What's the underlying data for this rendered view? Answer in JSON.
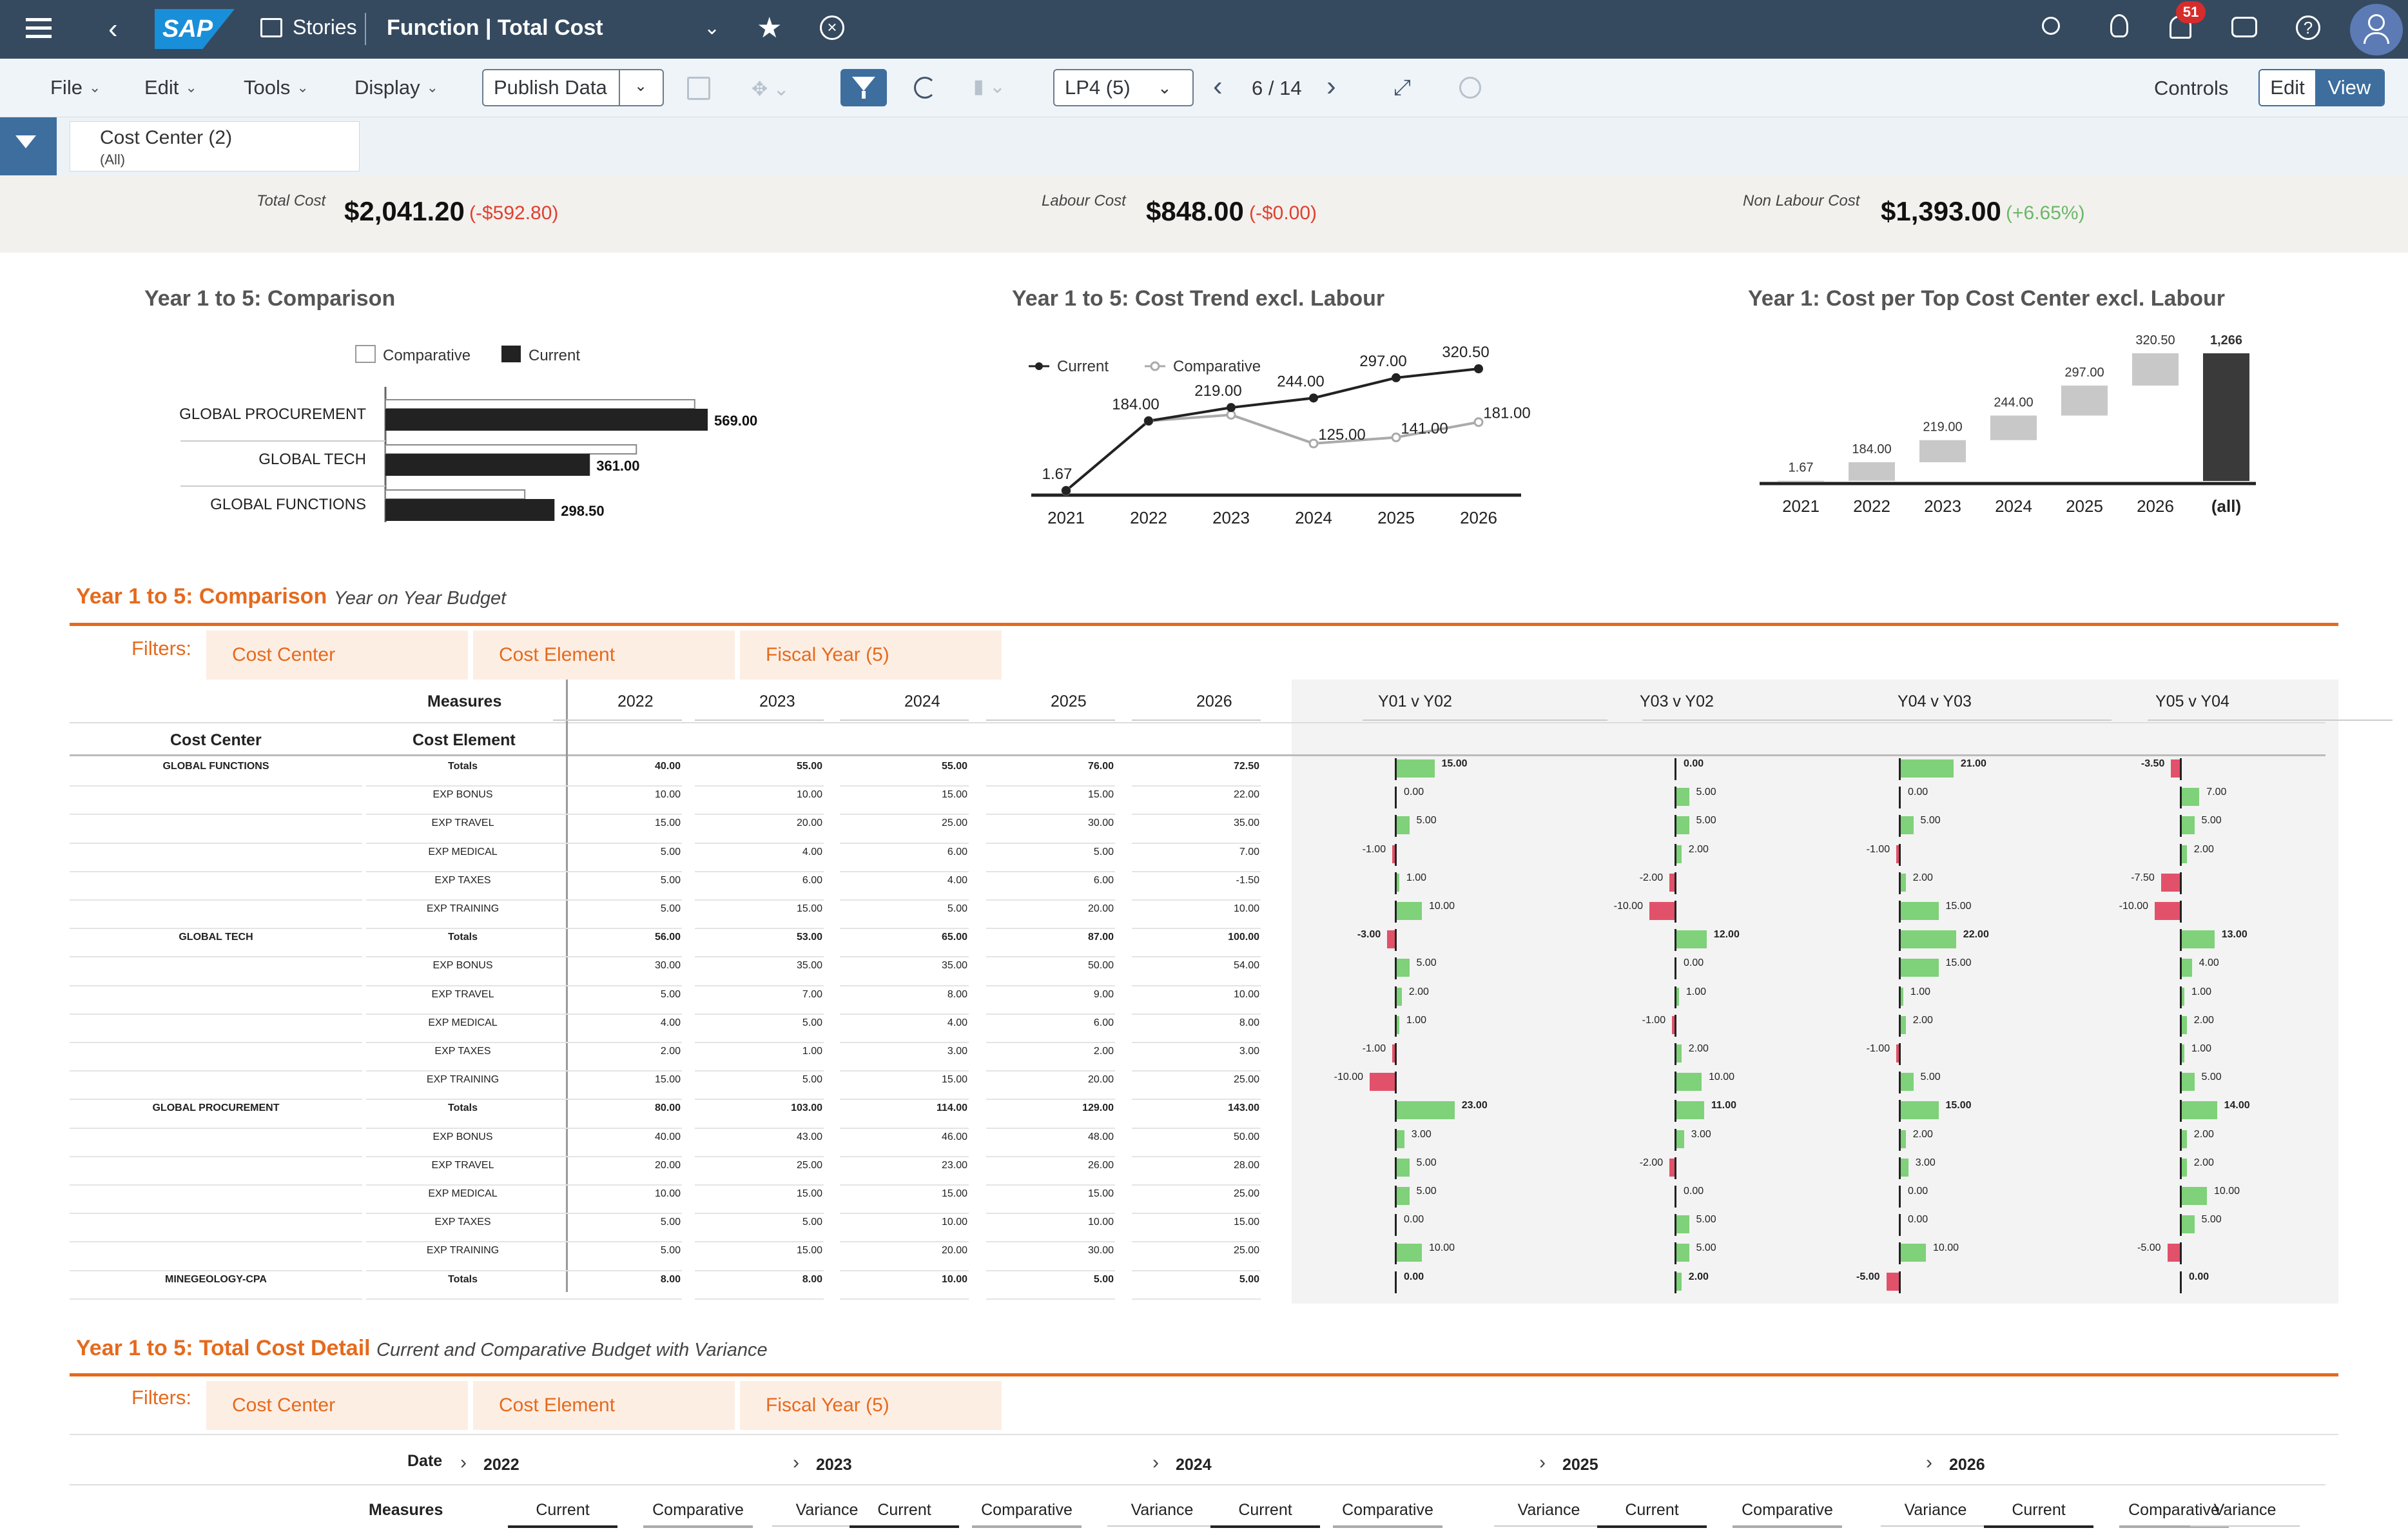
{
  "shell": {
    "stories": "Stories",
    "title": "Function | Total Cost",
    "notifications": "51"
  },
  "toolbar": {
    "file": "File",
    "edit": "Edit",
    "tools": "Tools",
    "display": "Display",
    "publish": "Publish Data",
    "version": "LP4 (5)",
    "page": "6 / 14",
    "controls": "Controls",
    "edit_btn": "Edit",
    "view_btn": "View"
  },
  "filterbar": {
    "name": "Cost Center (2)",
    "value": "(All)"
  },
  "kpis": [
    {
      "label": "Total Cost",
      "value": "$2,041.20",
      "variance": "(-$592.80)",
      "status": "#e0402f"
    },
    {
      "label": "Labour Cost",
      "value": "$848.00",
      "variance": "(-$0.00)",
      "status": "#e0402f"
    },
    {
      "label": "Non Labour Cost",
      "value": "$1,393.00",
      "variance": "(+6.65%)",
      "status": "#6bb86b"
    }
  ],
  "chart_data": [
    {
      "type": "bar",
      "title": "Year 1 to 5: Comparison",
      "legend": [
        "Comparative",
        "Current"
      ],
      "categories": [
        "GLOBAL PROCUREMENT",
        "GLOBAL TECH",
        "GLOBAL FUNCTIONS"
      ],
      "series": [
        {
          "name": "Comparative",
          "values": [
            546,
            443,
            246
          ]
        },
        {
          "name": "Current",
          "values": [
            569,
            361,
            298.5
          ]
        }
      ],
      "labels": [
        "569.00",
        "361.00",
        "298.50"
      ]
    },
    {
      "type": "line",
      "title": "Year 1 to 5: Cost Trend excl. Labour",
      "legend": [
        "Current",
        "Comparative"
      ],
      "x": [
        "2021",
        "2022",
        "2023",
        "2024",
        "2025",
        "2026"
      ],
      "series": [
        {
          "name": "Current",
          "values": [
            1.67,
            184,
            219,
            244,
            297,
            320.5
          ]
        },
        {
          "name": "Comparative",
          "values": [
            1.67,
            184,
            200,
            125,
            141,
            181
          ]
        }
      ],
      "labels_current": [
        "1.67",
        "184.00",
        "219.00",
        "244.00",
        "297.00",
        "320.50"
      ],
      "labels_comparative": [
        "125.00",
        "141.00",
        "181.00"
      ]
    },
    {
      "type": "bar",
      "title": "Year 1: Cost per Top Cost Center excl. Labour",
      "categories": [
        "2021",
        "2022",
        "2023",
        "2024",
        "2025",
        "2026",
        "(all)"
      ],
      "values": [
        1.67,
        184,
        219,
        244,
        297,
        320.5,
        1266
      ],
      "labels": [
        "1.67",
        "184.00",
        "219.00",
        "244.00",
        "297.00",
        "320.50",
        "1,266"
      ]
    }
  ],
  "section1": {
    "title": "Year 1 to 5: Comparison",
    "subtitle": "Year on Year Budget",
    "filters_label": "Filters:",
    "filters": [
      "Cost Center",
      "Cost Element",
      "Fiscal Year (5)"
    ],
    "measures_label": "Measures",
    "cost_center_label": "Cost Center",
    "cost_element_label": "Cost Element",
    "years": [
      "2022",
      "2023",
      "2024",
      "2025",
      "2026"
    ],
    "var_headers": [
      "Y01 v Y02",
      "Y03 v Y02",
      "Y04 v Y03",
      "Y05 v Y04"
    ],
    "rows": [
      [
        "GLOBAL FUNCTIONS",
        "Totals",
        "40.00",
        "55.00",
        "55.00",
        "76.00",
        "72.50",
        15,
        0,
        21,
        -3.5
      ],
      [
        "",
        "EXP BONUS",
        "10.00",
        "10.00",
        "15.00",
        "15.00",
        "22.00",
        0,
        5,
        0,
        7
      ],
      [
        "",
        "EXP TRAVEL",
        "15.00",
        "20.00",
        "25.00",
        "30.00",
        "35.00",
        5,
        5,
        5,
        5
      ],
      [
        "",
        "EXP MEDICAL",
        "5.00",
        "4.00",
        "6.00",
        "5.00",
        "7.00",
        -1,
        2,
        -1,
        2
      ],
      [
        "",
        "EXP TAXES",
        "5.00",
        "6.00",
        "4.00",
        "6.00",
        "-1.50",
        1,
        -2,
        2,
        -7.5
      ],
      [
        "",
        "EXP TRAINING",
        "5.00",
        "15.00",
        "5.00",
        "20.00",
        "10.00",
        10,
        -10,
        15,
        -10
      ],
      [
        "GLOBAL TECH",
        "Totals",
        "56.00",
        "53.00",
        "65.00",
        "87.00",
        "100.00",
        -3,
        12,
        22,
        13
      ],
      [
        "",
        "EXP BONUS",
        "30.00",
        "35.00",
        "35.00",
        "50.00",
        "54.00",
        5,
        0,
        15,
        4
      ],
      [
        "",
        "EXP TRAVEL",
        "5.00",
        "7.00",
        "8.00",
        "9.00",
        "10.00",
        2,
        1,
        1,
        1
      ],
      [
        "",
        "EXP MEDICAL",
        "4.00",
        "5.00",
        "4.00",
        "6.00",
        "8.00",
        1,
        -1,
        2,
        2
      ],
      [
        "",
        "EXP TAXES",
        "2.00",
        "1.00",
        "3.00",
        "2.00",
        "3.00",
        -1,
        2,
        -1,
        1
      ],
      [
        "",
        "EXP TRAINING",
        "15.00",
        "5.00",
        "15.00",
        "20.00",
        "25.00",
        -10,
        10,
        5,
        5
      ],
      [
        "GLOBAL PROCUREMENT",
        "Totals",
        "80.00",
        "103.00",
        "114.00",
        "129.00",
        "143.00",
        23,
        11,
        15,
        14
      ],
      [
        "",
        "EXP BONUS",
        "40.00",
        "43.00",
        "46.00",
        "48.00",
        "50.00",
        3,
        3,
        2,
        2
      ],
      [
        "",
        "EXP TRAVEL",
        "20.00",
        "25.00",
        "23.00",
        "26.00",
        "28.00",
        5,
        -2,
        3,
        2
      ],
      [
        "",
        "EXP MEDICAL",
        "10.00",
        "15.00",
        "15.00",
        "15.00",
        "25.00",
        5,
        0,
        0,
        10
      ],
      [
        "",
        "EXP TAXES",
        "5.00",
        "5.00",
        "10.00",
        "10.00",
        "15.00",
        0,
        5,
        0,
        5
      ],
      [
        "",
        "EXP TRAINING",
        "5.00",
        "15.00",
        "20.00",
        "30.00",
        "25.00",
        10,
        5,
        10,
        -5
      ],
      [
        "MINEGEOLOGY-CPA",
        "Totals",
        "8.00",
        "8.00",
        "10.00",
        "5.00",
        "5.00",
        0,
        2,
        -5,
        0
      ]
    ]
  },
  "section2": {
    "title": "Year 1 to 5: Total Cost Detail",
    "subtitle": "Current and Comparative Budget with Variance",
    "filters_label": "Filters:",
    "filters": [
      "Cost Center",
      "Cost Element",
      "Fiscal Year (5)"
    ],
    "date_label": "Date",
    "measures_label": "Measures",
    "years": [
      "2022",
      "2023",
      "2024",
      "2025",
      "2026"
    ],
    "measure_names": [
      "Current",
      "Comparative",
      "Variance"
    ]
  }
}
